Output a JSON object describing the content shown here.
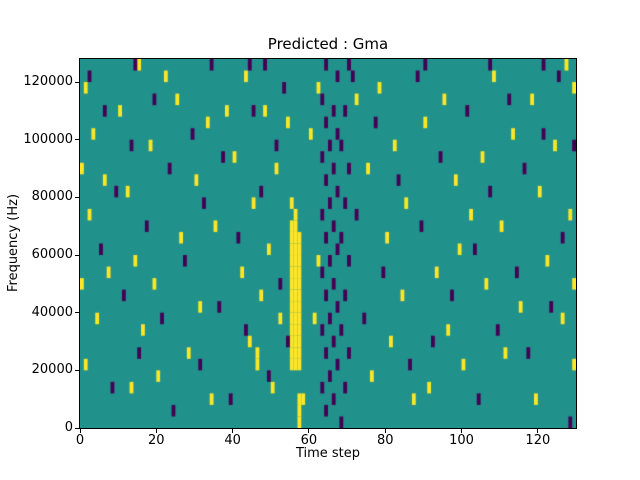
{
  "figure": {
    "title": "Predicted : Gma",
    "xlabel": "Time step",
    "ylabel": "Frequency (Hz)"
  },
  "chart_data": {
    "type": "heatmap",
    "title": "Predicted : Gma",
    "xlabel": "Time step",
    "ylabel": "Frequency (Hz)",
    "x_range": [
      0,
      130
    ],
    "y_range": [
      0,
      128000
    ],
    "x_ticks": [
      0,
      20,
      40,
      60,
      80,
      100,
      120
    ],
    "y_ticks": [
      0,
      20000,
      40000,
      60000,
      80000,
      100000,
      120000
    ],
    "grid": false,
    "legend": "none",
    "colormap": "viridis",
    "colors": {
      "background": "#21918c",
      "high": "#fde725",
      "low": "#440154"
    },
    "n_cols": 130,
    "n_rows": 32,
    "high_cells": [
      [
        0,
        22
      ],
      [
        0,
        12
      ],
      [
        1,
        29
      ],
      [
        1,
        5
      ],
      [
        2,
        18
      ],
      [
        3,
        25
      ],
      [
        4,
        9
      ],
      [
        6,
        21
      ],
      [
        7,
        13
      ],
      [
        10,
        27
      ],
      [
        12,
        20
      ],
      [
        13,
        3
      ],
      [
        14,
        14
      ],
      [
        15,
        31
      ],
      [
        16,
        8
      ],
      [
        18,
        24
      ],
      [
        19,
        12
      ],
      [
        20,
        4
      ],
      [
        22,
        30
      ],
      [
        25,
        28
      ],
      [
        26,
        16
      ],
      [
        28,
        6
      ],
      [
        30,
        21
      ],
      [
        31,
        10
      ],
      [
        33,
        26
      ],
      [
        34,
        2
      ],
      [
        35,
        17
      ],
      [
        38,
        27
      ],
      [
        40,
        23
      ],
      [
        42,
        13
      ],
      [
        43,
        30
      ],
      [
        44,
        7
      ],
      [
        45,
        19
      ],
      [
        46,
        5
      ],
      [
        46,
        6
      ],
      [
        47,
        11
      ],
      [
        48,
        27
      ],
      [
        49,
        15
      ],
      [
        50,
        3
      ],
      [
        51,
        22
      ],
      [
        52,
        9
      ],
      [
        54,
        26
      ],
      [
        55,
        5
      ],
      [
        55,
        6
      ],
      [
        55,
        7
      ],
      [
        55,
        8
      ],
      [
        55,
        9
      ],
      [
        55,
        10
      ],
      [
        55,
        11
      ],
      [
        55,
        12
      ],
      [
        55,
        13
      ],
      [
        55,
        14
      ],
      [
        55,
        15
      ],
      [
        55,
        16
      ],
      [
        55,
        17
      ],
      [
        55,
        19
      ],
      [
        56,
        5
      ],
      [
        56,
        6
      ],
      [
        56,
        7
      ],
      [
        56,
        8
      ],
      [
        56,
        9
      ],
      [
        56,
        10
      ],
      [
        56,
        11
      ],
      [
        56,
        12
      ],
      [
        56,
        13
      ],
      [
        56,
        14
      ],
      [
        56,
        15
      ],
      [
        56,
        16
      ],
      [
        56,
        17
      ],
      [
        56,
        18
      ],
      [
        57,
        0
      ],
      [
        57,
        1
      ],
      [
        57,
        2
      ],
      [
        57,
        5
      ],
      [
        57,
        6
      ],
      [
        57,
        7
      ],
      [
        57,
        8
      ],
      [
        57,
        9
      ],
      [
        57,
        10
      ],
      [
        57,
        11
      ],
      [
        57,
        12
      ],
      [
        57,
        13
      ],
      [
        57,
        14
      ],
      [
        57,
        15
      ],
      [
        57,
        16
      ],
      [
        58,
        2
      ],
      [
        60,
        25
      ],
      [
        61,
        9
      ],
      [
        62,
        14
      ],
      [
        62,
        29
      ],
      [
        72,
        28
      ],
      [
        75,
        22
      ],
      [
        76,
        4
      ],
      [
        78,
        29
      ],
      [
        80,
        16
      ],
      [
        81,
        7
      ],
      [
        82,
        24
      ],
      [
        84,
        11
      ],
      [
        85,
        19
      ],
      [
        87,
        2
      ],
      [
        90,
        26
      ],
      [
        91,
        3
      ],
      [
        93,
        13
      ],
      [
        95,
        28
      ],
      [
        96,
        8
      ],
      [
        98,
        21
      ],
      [
        99,
        15
      ],
      [
        100,
        5
      ],
      [
        102,
        18
      ],
      [
        105,
        23
      ],
      [
        106,
        12
      ],
      [
        108,
        30
      ],
      [
        110,
        17
      ],
      [
        111,
        6
      ],
      [
        113,
        25
      ],
      [
        115,
        10
      ],
      [
        118,
        28
      ],
      [
        119,
        2
      ],
      [
        120,
        20
      ],
      [
        122,
        14
      ],
      [
        124,
        24
      ],
      [
        126,
        9
      ],
      [
        127,
        31
      ],
      [
        128,
        18
      ],
      [
        129,
        29
      ],
      [
        129,
        5
      ],
      [
        129,
        12
      ]
    ],
    "low_cells": [
      [
        2,
        30
      ],
      [
        5,
        15
      ],
      [
        6,
        27
      ],
      [
        8,
        3
      ],
      [
        9,
        20
      ],
      [
        11,
        11
      ],
      [
        13,
        24
      ],
      [
        14,
        31
      ],
      [
        15,
        6
      ],
      [
        17,
        17
      ],
      [
        19,
        28
      ],
      [
        21,
        9
      ],
      [
        23,
        22
      ],
      [
        24,
        1
      ],
      [
        27,
        14
      ],
      [
        29,
        25
      ],
      [
        31,
        5
      ],
      [
        32,
        19
      ],
      [
        34,
        31
      ],
      [
        36,
        10
      ],
      [
        37,
        23
      ],
      [
        39,
        2
      ],
      [
        41,
        16
      ],
      [
        43,
        8
      ],
      [
        44,
        31
      ],
      [
        45,
        27
      ],
      [
        47,
        20
      ],
      [
        48,
        31
      ],
      [
        49,
        4
      ],
      [
        51,
        24
      ],
      [
        52,
        12
      ],
      [
        53,
        29
      ],
      [
        54,
        7
      ],
      [
        63,
        3
      ],
      [
        63,
        8
      ],
      [
        63,
        13
      ],
      [
        63,
        18
      ],
      [
        63,
        23
      ],
      [
        63,
        28
      ],
      [
        64,
        1
      ],
      [
        64,
        6
      ],
      [
        64,
        11
      ],
      [
        64,
        16
      ],
      [
        64,
        21
      ],
      [
        64,
        26
      ],
      [
        64,
        31
      ],
      [
        65,
        4
      ],
      [
        65,
        9
      ],
      [
        65,
        14
      ],
      [
        65,
        19
      ],
      [
        65,
        24
      ],
      [
        66,
        2
      ],
      [
        66,
        7
      ],
      [
        66,
        12
      ],
      [
        66,
        17
      ],
      [
        66,
        22
      ],
      [
        66,
        27
      ],
      [
        67,
        5
      ],
      [
        67,
        10
      ],
      [
        67,
        15
      ],
      [
        67,
        20
      ],
      [
        67,
        25
      ],
      [
        67,
        30
      ],
      [
        68,
        0
      ],
      [
        68,
        8
      ],
      [
        68,
        16
      ],
      [
        68,
        24
      ],
      [
        69,
        3
      ],
      [
        69,
        11
      ],
      [
        69,
        19
      ],
      [
        69,
        27
      ],
      [
        70,
        6
      ],
      [
        70,
        14
      ],
      [
        70,
        22
      ],
      [
        70,
        31
      ],
      [
        71,
        30
      ],
      [
        72,
        18
      ],
      [
        74,
        9
      ],
      [
        77,
        26
      ],
      [
        79,
        13
      ],
      [
        83,
        21
      ],
      [
        86,
        5
      ],
      [
        88,
        30
      ],
      [
        89,
        17
      ],
      [
        90,
        31
      ],
      [
        92,
        7
      ],
      [
        94,
        23
      ],
      [
        97,
        11
      ],
      [
        101,
        27
      ],
      [
        103,
        15
      ],
      [
        104,
        2
      ],
      [
        107,
        20
      ],
      [
        107,
        31
      ],
      [
        109,
        8
      ],
      [
        112,
        28
      ],
      [
        114,
        13
      ],
      [
        116,
        22
      ],
      [
        117,
        6
      ],
      [
        121,
        25
      ],
      [
        121,
        31
      ],
      [
        123,
        10
      ],
      [
        125,
        30
      ],
      [
        126,
        16
      ],
      [
        128,
        0
      ],
      [
        129,
        24
      ]
    ]
  }
}
